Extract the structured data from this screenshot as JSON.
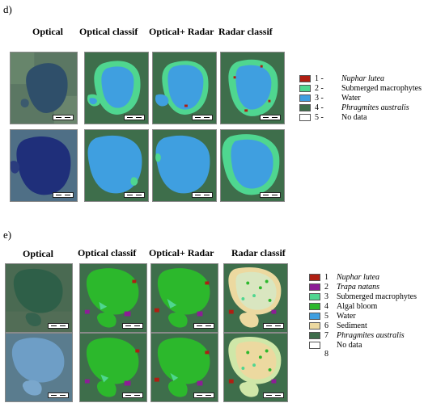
{
  "panel_d": {
    "label": "d)",
    "col_optical": "Optical",
    "col_optical_classif": "Optical classif",
    "col_optical_radar": "Optical+ Radar",
    "col_radar_classif": "Radar classif",
    "legend": [
      {
        "num": "1 -",
        "label": "Nuphar lutea",
        "italic": true,
        "color": "#b01e12"
      },
      {
        "num": "2 -",
        "label": "Submerged macrophytes",
        "italic": false,
        "color": "#4fd690"
      },
      {
        "num": "3 -",
        "label": "Water",
        "italic": false,
        "color": "#3f9fe0"
      },
      {
        "num": "4 -",
        "label": "Phragmites australis",
        "italic": true,
        "color": "#3e6e4b"
      },
      {
        "num": "5 -",
        "label": "No data",
        "italic": false,
        "color": "#ffffff"
      }
    ]
  },
  "panel_e": {
    "label": "e)",
    "col_optical": "Optical",
    "col_optical_classif": "Optical classif",
    "col_optical_radar": "Optical+ Radar",
    "col_radar_classif": "Radar classif",
    "legend": [
      {
        "num": "1",
        "label": "Nuphar lutea",
        "italic": true,
        "color": "#b01e12"
      },
      {
        "num": "2",
        "label": "Trapa natans",
        "italic": true,
        "color": "#8d1d96"
      },
      {
        "num": "3",
        "label": "Submerged macrophytes",
        "italic": false,
        "color": "#4fd690"
      },
      {
        "num": "4",
        "label": "Algal bloom",
        "italic": false,
        "color": "#2cb82c"
      },
      {
        "num": "5",
        "label": "Water",
        "italic": false,
        "color": "#3f9fe0"
      },
      {
        "num": "6",
        "label": "Sediment",
        "italic": false,
        "color": "#ecd9a0"
      },
      {
        "num": "7",
        "label": "Phragmites australis",
        "italic": true,
        "color": "#3e6e4b"
      },
      {
        "num": "8",
        "label": "No data",
        "italic": false,
        "color": "#ffffff"
      }
    ]
  },
  "colors": {
    "phragmites_bg": "#3e6e4b",
    "water": "#3f9fe0",
    "submerged": "#4fd690",
    "nuphar": "#b01e12",
    "trapa": "#8d1d96",
    "algal": "#2cb82c",
    "sediment": "#ecd9a0",
    "optical_land": "#5b7763",
    "optical_water_d1": "#2f4f6a",
    "optical_water_d2": "#1f2f7a",
    "optical_water_e1": "#2e5f48",
    "optical_water_e2": "#6e9ec6"
  }
}
